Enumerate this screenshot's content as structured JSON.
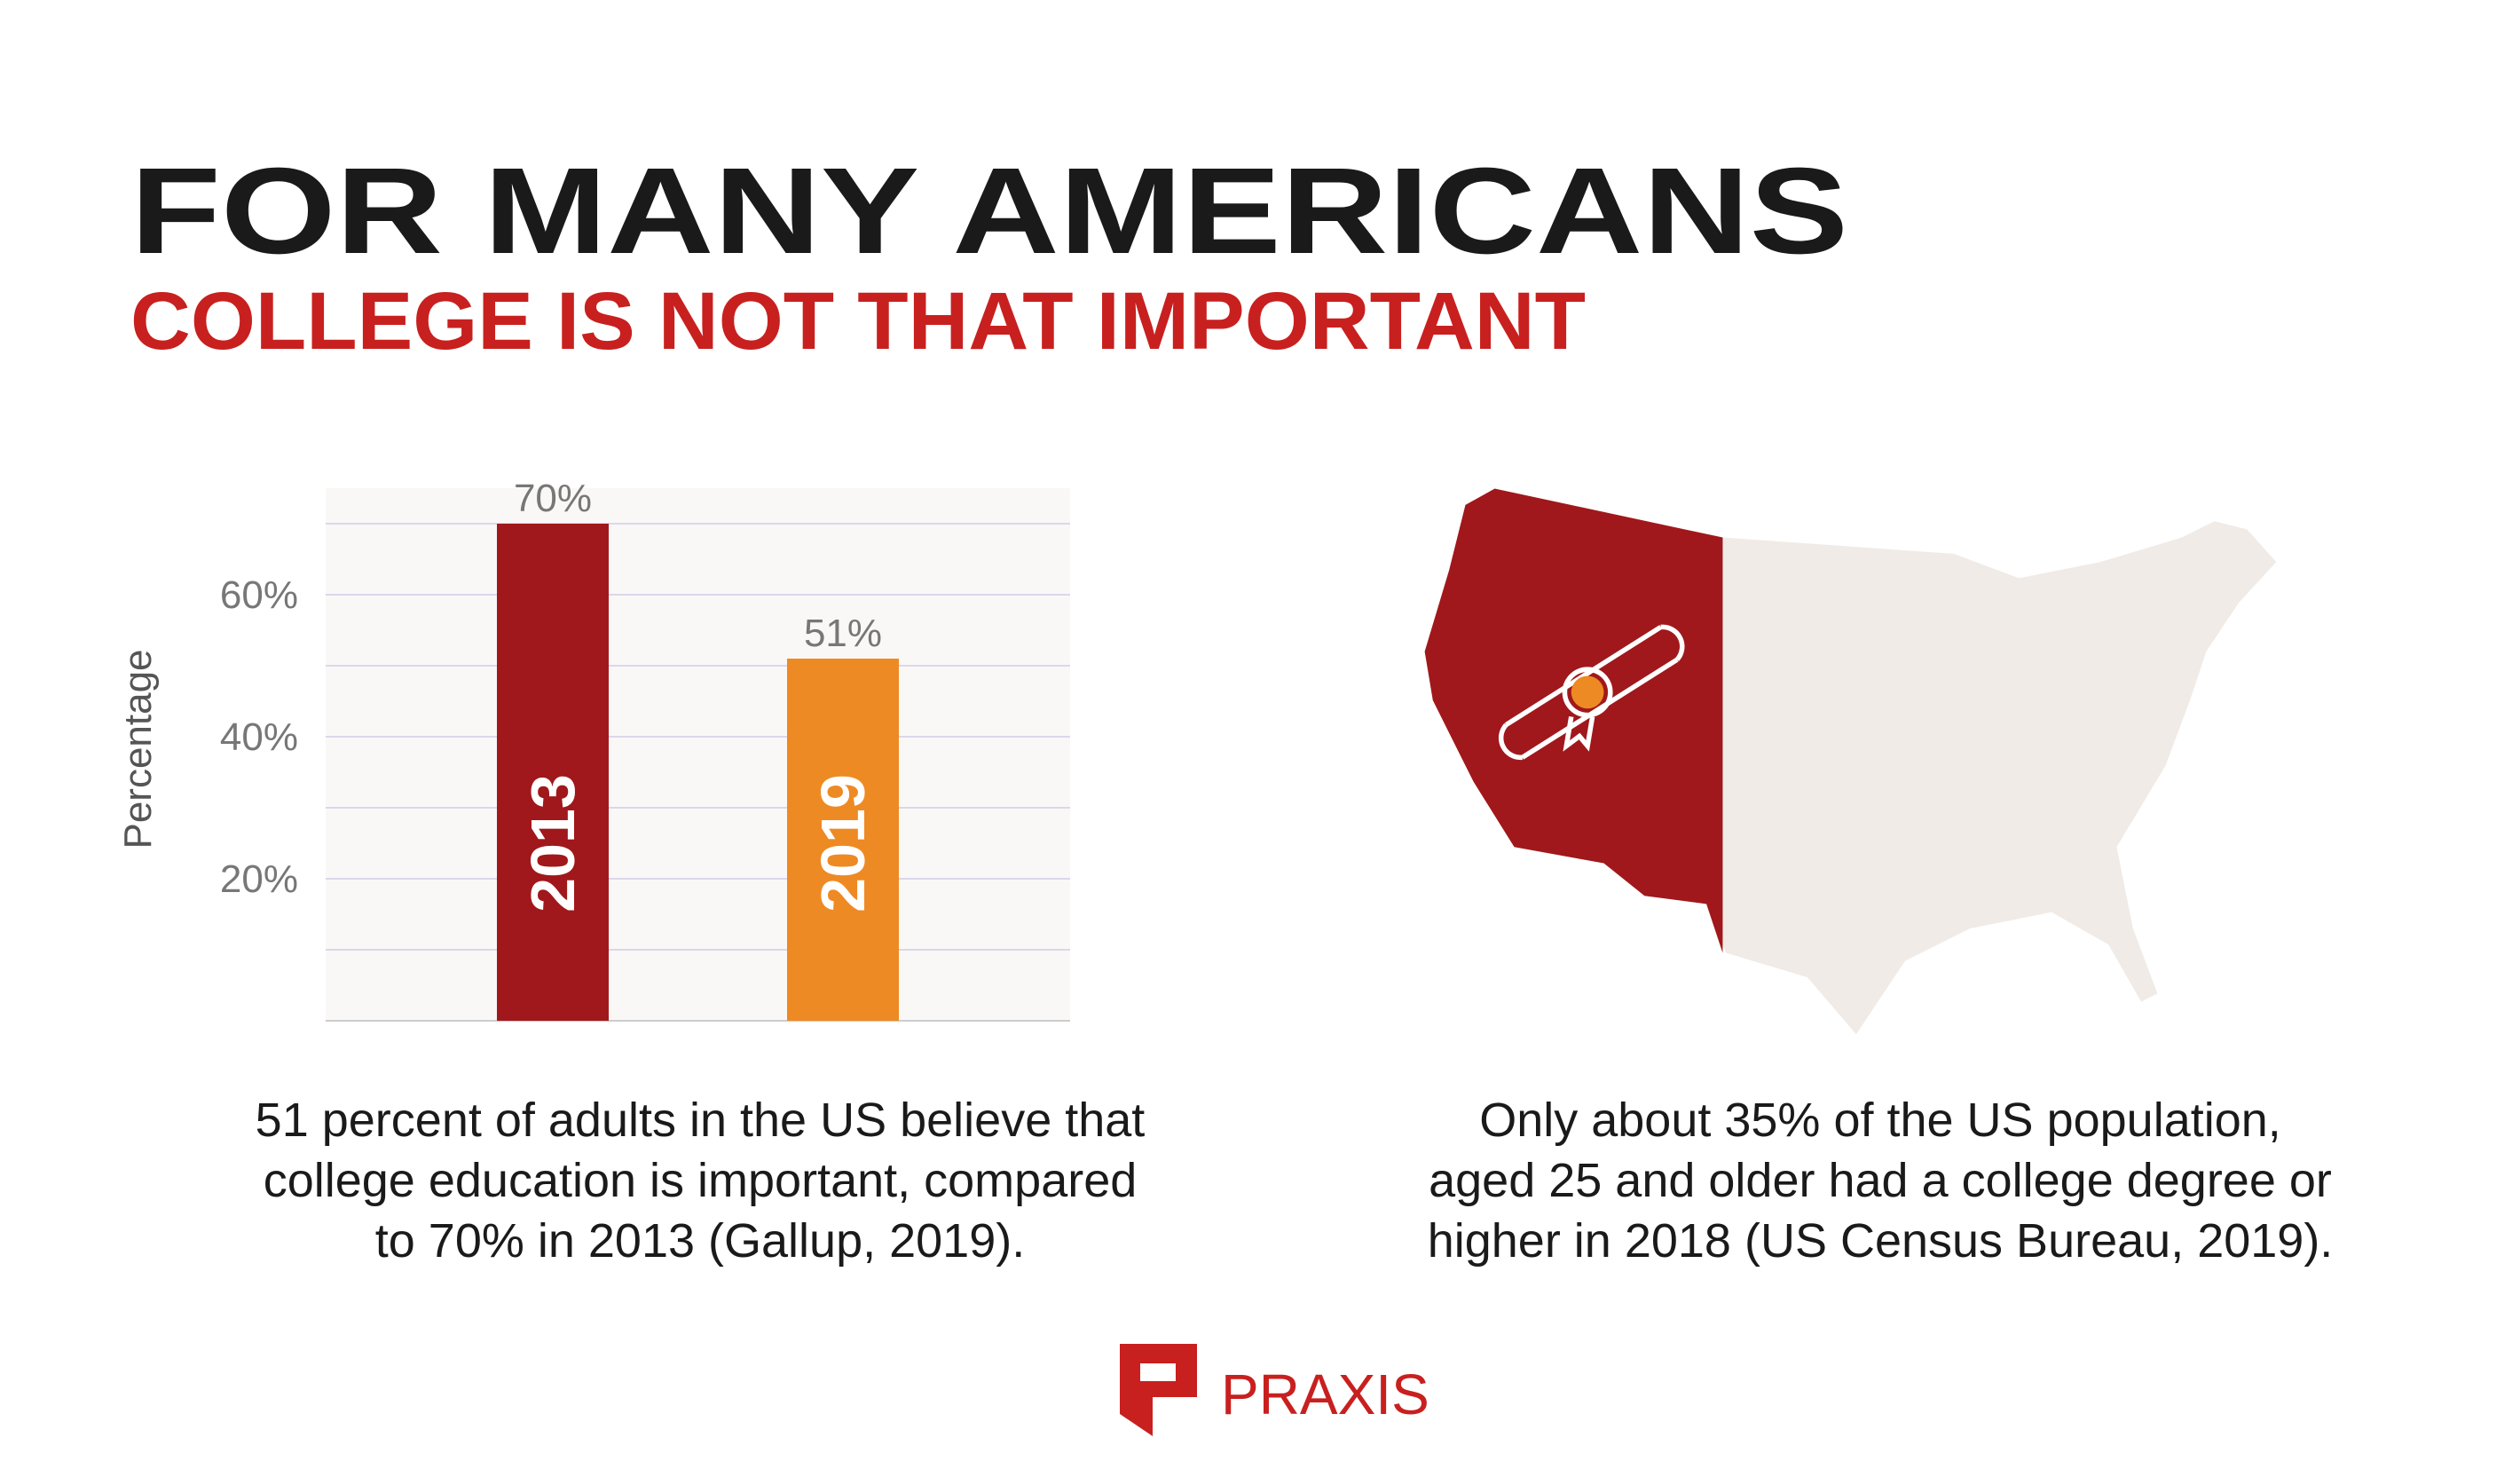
{
  "header": {
    "title": "FOR MANY AMERICANS",
    "subtitle": "COLLEGE IS NOT THAT IMPORTANT"
  },
  "chart_data": {
    "type": "bar",
    "categories": [
      "2013",
      "2019"
    ],
    "values": [
      70,
      51
    ],
    "value_labels": [
      "70%",
      "51%"
    ],
    "colors": [
      "#a0181b",
      "#ee8a23"
    ],
    "y_label": "Percentage",
    "ylim": [
      0,
      75
    ],
    "yticks": [
      {
        "value": 10,
        "label": null
      },
      {
        "value": 20,
        "label": "20%"
      },
      {
        "value": 30,
        "label": null
      },
      {
        "value": 40,
        "label": "40%"
      },
      {
        "value": 50,
        "label": null
      },
      {
        "value": 60,
        "label": "60%"
      },
      {
        "value": 70,
        "label": null
      }
    ],
    "grid": true
  },
  "captions": [
    [
      "51 percent of adults in the US believe that",
      "college education is important, compared",
      "to 70% in 2013 (Gallup, 2019)."
    ],
    [
      "Only about 35% of the US population,",
      "aged 25 and older had a college degree or",
      "higher in 2018 (US Census Bureau, 2019)."
    ]
  ],
  "logo": "PRAXIS"
}
